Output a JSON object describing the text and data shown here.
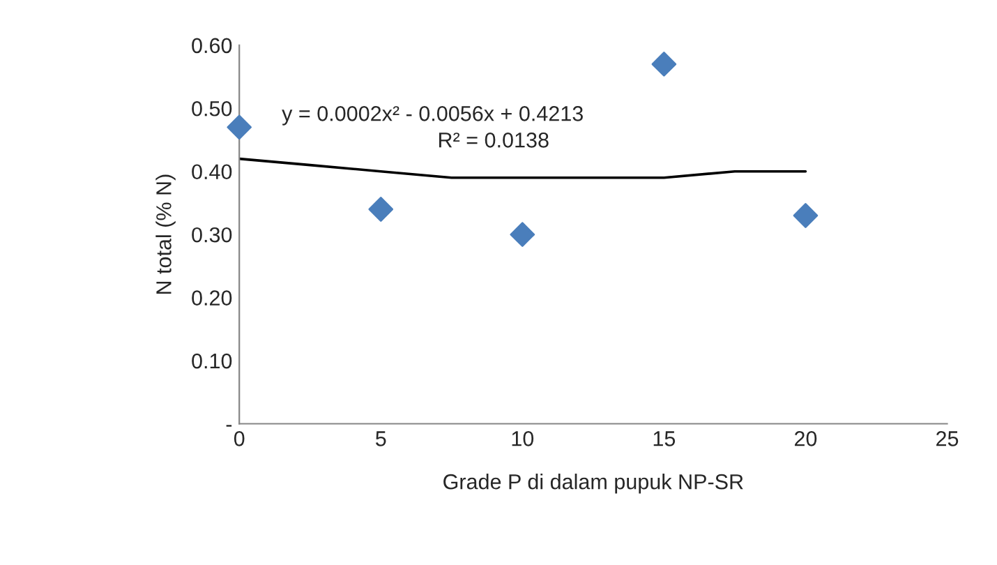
{
  "chart_data": {
    "type": "scatter",
    "xlabel": "Grade P di dalam pupuk NP-SR",
    "ylabel": "N total (% N)",
    "series": [
      {
        "color": "#4a7ebb",
        "marker": "diamond",
        "x": [
          0,
          5,
          10,
          15,
          20
        ],
        "values": [
          0.47,
          0.34,
          0.3,
          0.57,
          0.33
        ]
      },
      {
        "type": "line",
        "color": "#000000",
        "marker": "none",
        "line_style": "solid",
        "x": [
          0,
          2.5,
          5,
          7.5,
          10,
          12.5,
          15,
          17.5,
          20
        ],
        "values": [
          0.42,
          0.41,
          0.4,
          0.39,
          0.39,
          0.39,
          0.39,
          0.4,
          0.4
        ]
      }
    ],
    "xlim": [
      0,
      25
    ],
    "xticks": [
      0,
      5,
      10,
      15,
      20,
      25
    ],
    "ylim": [
      0,
      0.6
    ],
    "yticks": [
      {
        "value": 0,
        "label": "-"
      },
      {
        "value": 0.1,
        "label": "0.10"
      },
      {
        "value": 0.2,
        "label": "0.20"
      },
      {
        "value": 0.3,
        "label": "0.30"
      },
      {
        "value": 0.4,
        "label": "0.40"
      },
      {
        "value": 0.5,
        "label": "0.50"
      },
      {
        "value": 0.6,
        "label": "0.60"
      }
    ],
    "grid": false,
    "legend": false,
    "annotations": [
      "y = 0.0002x² - 0.0056x + 0.4213",
      "R² = 0.0138"
    ]
  }
}
